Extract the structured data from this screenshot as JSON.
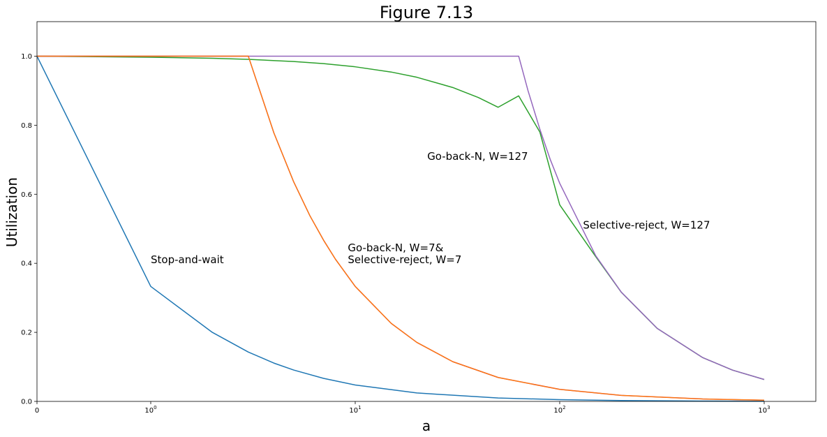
{
  "chart_data": {
    "type": "line",
    "title": "Figure 7.13",
    "xlabel": "a",
    "ylabel": "Utilization",
    "x_scale": "symlog",
    "xlim": [
      0,
      1000
    ],
    "ylim": [
      0,
      1.1
    ],
    "grid": false,
    "x_ticks": [
      {
        "value": 0,
        "label": "0"
      },
      {
        "value": 1,
        "label": "10",
        "exp": "0"
      },
      {
        "value": 10,
        "label": "10",
        "exp": "1"
      },
      {
        "value": 100,
        "label": "10",
        "exp": "2"
      },
      {
        "value": 1000,
        "label": "10",
        "exp": "3"
      }
    ],
    "y_ticks": [
      {
        "value": 0,
        "label": "0.0"
      },
      {
        "value": 0.2,
        "label": "0.2"
      },
      {
        "value": 0.4,
        "label": "0.4"
      },
      {
        "value": 0.6,
        "label": "0.6"
      },
      {
        "value": 0.8,
        "label": "0.8"
      },
      {
        "value": 1.0,
        "label": "1.0"
      }
    ],
    "series": [
      {
        "color": "#1f77b4",
        "points": [
          [
            0,
            1.0
          ],
          [
            1,
            0.333
          ],
          [
            2,
            0.2
          ],
          [
            3,
            0.143
          ],
          [
            4,
            0.111
          ],
          [
            5,
            0.0909
          ],
          [
            7,
            0.0667
          ],
          [
            10,
            0.0476
          ],
          [
            20,
            0.0244
          ],
          [
            50,
            0.0099
          ],
          [
            100,
            0.005
          ],
          [
            200,
            0.0025
          ],
          [
            500,
            0.001
          ],
          [
            1000,
            0.0005
          ]
        ]
      },
      {
        "color": "#2ca02c",
        "points": [
          [
            0,
            1.0
          ],
          [
            1,
            0.9969
          ],
          [
            2,
            0.9938
          ],
          [
            3,
            0.9908
          ],
          [
            5,
            0.9845
          ],
          [
            7,
            0.9784
          ],
          [
            10,
            0.9692
          ],
          [
            15,
            0.954
          ],
          [
            20,
            0.9389
          ],
          [
            30,
            0.9092
          ],
          [
            40,
            0.8802
          ],
          [
            50,
            0.852
          ],
          [
            63,
            0.885
          ],
          [
            80,
            0.78
          ],
          [
            100,
            0.5693
          ],
          [
            150,
            0.4194
          ],
          [
            200,
            0.3163
          ],
          [
            300,
            0.2112
          ],
          [
            500,
            0.1269
          ],
          [
            700,
            0.0906
          ],
          [
            1000,
            0.0635
          ]
        ]
      },
      {
        "color": "#9467bd",
        "points": [
          [
            0,
            1.0
          ],
          [
            1,
            1.0
          ],
          [
            5,
            1.0
          ],
          [
            10,
            1.0
          ],
          [
            30,
            1.0
          ],
          [
            63,
            1.0
          ],
          [
            70,
            0.9
          ],
          [
            80,
            0.788
          ],
          [
            90,
            0.7
          ],
          [
            100,
            0.6318
          ],
          [
            150,
            0.4219
          ],
          [
            200,
            0.3166
          ],
          [
            300,
            0.2113
          ],
          [
            500,
            0.1269
          ],
          [
            700,
            0.0906
          ],
          [
            1000,
            0.0635
          ]
        ]
      },
      {
        "color": "#d62728",
        "points": [
          [
            0,
            1.0
          ],
          [
            1,
            1.0
          ],
          [
            2,
            1.0
          ],
          [
            3,
            1.0
          ],
          [
            4,
            0.778
          ],
          [
            5,
            0.636
          ],
          [
            6,
            0.538
          ],
          [
            7,
            0.467
          ],
          [
            8,
            0.412
          ],
          [
            10,
            0.333
          ],
          [
            15,
            0.226
          ],
          [
            20,
            0.171
          ],
          [
            30,
            0.115
          ],
          [
            50,
            0.0693
          ],
          [
            100,
            0.0348
          ],
          [
            200,
            0.0175
          ],
          [
            500,
            0.007
          ],
          [
            1000,
            0.0035
          ]
        ]
      },
      {
        "color": "#ff7f0e",
        "width": 1.2,
        "points": [
          [
            0,
            1.0
          ],
          [
            1,
            1.0
          ],
          [
            2,
            1.0
          ],
          [
            3,
            1.0
          ],
          [
            4,
            0.778
          ],
          [
            5,
            0.636
          ],
          [
            6,
            0.538
          ],
          [
            7,
            0.467
          ],
          [
            8,
            0.412
          ],
          [
            10,
            0.333
          ],
          [
            15,
            0.226
          ],
          [
            20,
            0.171
          ],
          [
            30,
            0.115
          ],
          [
            50,
            0.0693
          ],
          [
            100,
            0.0348
          ],
          [
            200,
            0.0175
          ],
          [
            500,
            0.007
          ],
          [
            1000,
            0.0035
          ]
        ]
      }
    ],
    "annotations": [
      {
        "lines": [
          "Stop-and-wait"
        ],
        "x": 1,
        "y": 0.4
      },
      {
        "lines": [
          "Go-back-N, W=7&",
          "Selective-reject, W=7"
        ],
        "x": 9.2,
        "y": 0.4
      },
      {
        "lines": [
          "Go-back-N, W=127"
        ],
        "x": 22.5,
        "y": 0.7
      },
      {
        "lines": [
          "Selective-reject, W=127"
        ],
        "x": 130,
        "y": 0.5
      }
    ]
  }
}
